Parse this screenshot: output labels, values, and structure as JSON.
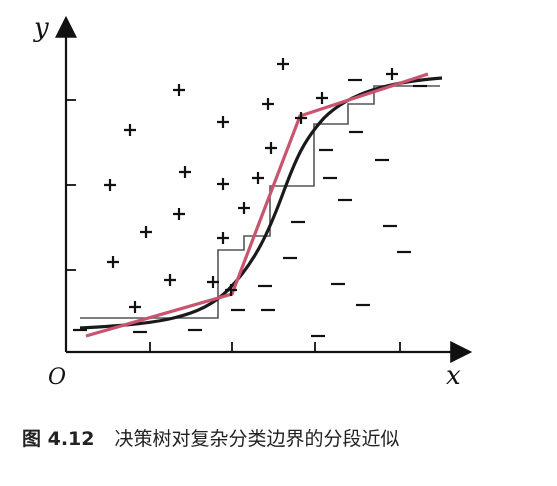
{
  "axes": {
    "x_label": "x",
    "y_label": "y",
    "origin_label": "O"
  },
  "marks": {
    "positive": [
      [
        283,
        64
      ],
      [
        179,
        90
      ],
      [
        130,
        130
      ],
      [
        223,
        122
      ],
      [
        268,
        104
      ],
      [
        322,
        98
      ],
      [
        392,
        74
      ],
      [
        301,
        118
      ],
      [
        110,
        185
      ],
      [
        185,
        172
      ],
      [
        223,
        184
      ],
      [
        258,
        178
      ],
      [
        271,
        148
      ],
      [
        179,
        214
      ],
      [
        146,
        232
      ],
      [
        244,
        208
      ],
      [
        113,
        262
      ],
      [
        223,
        238
      ],
      [
        170,
        280
      ],
      [
        213,
        282
      ],
      [
        135,
        307
      ],
      [
        231,
        290
      ]
    ],
    "negative": [
      [
        355,
        80
      ],
      [
        382,
        160
      ],
      [
        326,
        150
      ],
      [
        330,
        178
      ],
      [
        345,
        200
      ],
      [
        298,
        222
      ],
      [
        390,
        226
      ],
      [
        404,
        252
      ],
      [
        290,
        258
      ],
      [
        265,
        286
      ],
      [
        338,
        284
      ],
      [
        238,
        310
      ],
      [
        268,
        310
      ],
      [
        363,
        305
      ],
      [
        318,
        336
      ],
      [
        195,
        330
      ],
      [
        140,
        332
      ],
      [
        80,
        330
      ],
      [
        356,
        132
      ],
      [
        420,
        86
      ]
    ]
  },
  "caption": {
    "figure_number": "图 4.12",
    "text": "决策树对复杂分类边界的分段近似"
  },
  "colors": {
    "smooth_boundary": "#1a1a1a",
    "piecewise_linear": "#c9546e",
    "step_boundary": "#555555"
  }
}
